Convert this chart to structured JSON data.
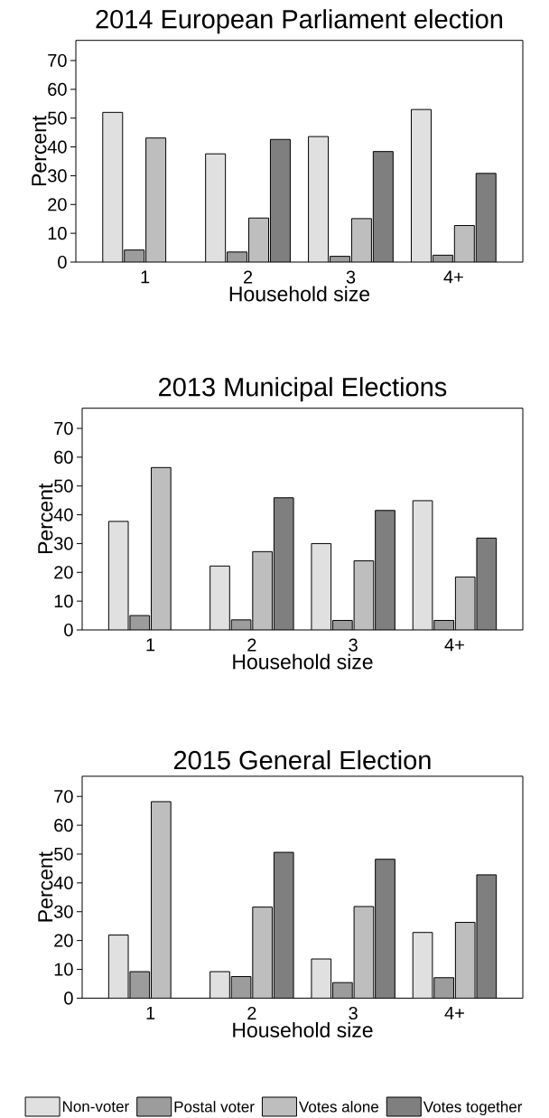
{
  "chart_data": [
    {
      "type": "bar",
      "title": "2014 European Parliament election",
      "xlabel": "Household size",
      "ylabel": "Percent",
      "categories": [
        "1",
        "2",
        "3",
        "4+"
      ],
      "ylim": [
        0,
        77
      ],
      "yticks": [
        0,
        10,
        20,
        30,
        40,
        50,
        60,
        70
      ],
      "series": [
        {
          "color": "#e0e0e0",
          "values": [
            52,
            37.6,
            43.6,
            53
          ]
        },
        {
          "color": "#9c9c9c",
          "values": [
            4.2,
            3.5,
            2,
            2.4
          ]
        },
        {
          "color": "#bebebe",
          "values": [
            43.1,
            15.3,
            15.1,
            12.7
          ]
        },
        {
          "color": "#7f7f7f",
          "values": [
            null,
            42.6,
            38.4,
            30.8
          ]
        }
      ]
    },
    {
      "type": "bar",
      "title": "2013 Municipal Elections",
      "xlabel": "Household size",
      "ylabel": "Percent",
      "categories": [
        "1",
        "2",
        "3",
        "4+"
      ],
      "ylim": [
        0,
        77
      ],
      "yticks": [
        0,
        10,
        20,
        30,
        40,
        50,
        60,
        70
      ],
      "series": [
        {
          "color": "#e0e0e0",
          "values": [
            37.7,
            22.2,
            30,
            44.9
          ]
        },
        {
          "color": "#9c9c9c",
          "values": [
            5,
            3.5,
            3.3,
            3.3
          ]
        },
        {
          "color": "#bebebe",
          "values": [
            56.4,
            27.2,
            24,
            18.4
          ]
        },
        {
          "color": "#7f7f7f",
          "values": [
            null,
            45.9,
            41.5,
            31.9
          ]
        }
      ]
    },
    {
      "type": "bar",
      "title": "2015 General Election",
      "xlabel": "Household size",
      "ylabel": "Percent",
      "categories": [
        "1",
        "2",
        "3",
        "4+"
      ],
      "ylim": [
        0,
        77
      ],
      "yticks": [
        0,
        10,
        20,
        30,
        40,
        50,
        60,
        70
      ],
      "legend": "bottom",
      "series": [
        {
          "name": "Non-voter",
          "color": "#e0e0e0",
          "values": [
            21.9,
            9.2,
            13.6,
            22.8
          ]
        },
        {
          "name": "Postal voter",
          "color": "#9c9c9c",
          "values": [
            9.2,
            7.5,
            5.4,
            7.1
          ]
        },
        {
          "name": "Votes alone",
          "color": "#bebebe",
          "values": [
            68.2,
            31.6,
            31.8,
            26.3
          ]
        },
        {
          "name": "Votes together",
          "color": "#7f7f7f",
          "values": [
            null,
            50.6,
            48.2,
            42.8
          ]
        }
      ]
    }
  ]
}
